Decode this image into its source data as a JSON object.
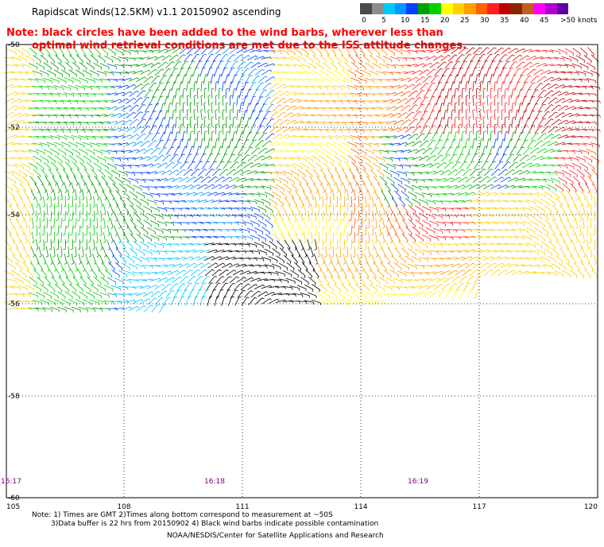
{
  "header": {
    "title": "Rapidscat Winds(12.5KM) v1.1 20150902 ascending",
    "note_line1": "Note: black circles have been added to the wind barbs, wherever less than",
    "note_line2": "optimal wind retrieval conditions are met due to the ISS attitude changes."
  },
  "colorbar": {
    "colors": [
      "#4a4a4a",
      "#8c8c8c",
      "#00c8ff",
      "#0096ff",
      "#0040ff",
      "#00a000",
      "#00d000",
      "#ffff00",
      "#ffd000",
      "#ffa000",
      "#ff6000",
      "#ff2020",
      "#c00000",
      "#8b2500",
      "#c06020",
      "#ff00ff",
      "#b000d0",
      "#6000a0"
    ],
    "tick_labels": [
      "0",
      "5",
      "10",
      "15",
      "20",
      "25",
      "30",
      "35",
      "40",
      "45",
      ">50 knots"
    ]
  },
  "map": {
    "lon_labels": [
      "105",
      "108",
      "111",
      "114",
      "117",
      "120"
    ],
    "lat_labels": [
      "-50",
      "-52",
      "-54",
      "-56",
      "-58",
      "-60"
    ],
    "time_labels": [
      "16:17",
      "16:18",
      "16:19"
    ],
    "time_label_color": "#800080"
  },
  "footer": {
    "line1": "Note: 1) Times are GMT 2)Times along bottom correspond to measurement at ~50S",
    "line2": "3)Data buffer is 22 hrs from 20150902 4) Black wind barbs indicate possible contamination",
    "line3": "NOAA/NESDIS/Center for Satellite Applications and Research"
  }
}
